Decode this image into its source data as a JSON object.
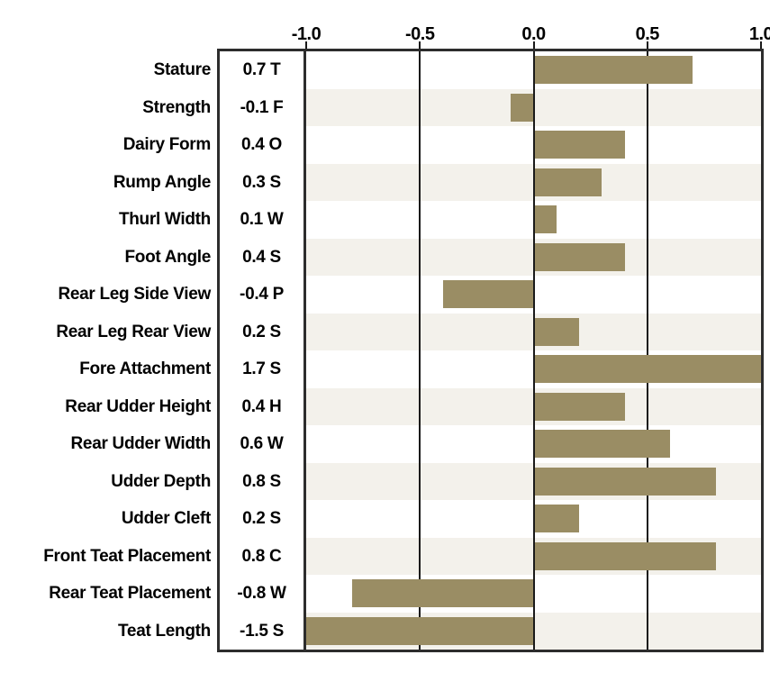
{
  "chart_data": {
    "type": "bar",
    "orientation": "horizontal",
    "title": "",
    "categories": [
      "Stature",
      "Strength",
      "Dairy Form",
      "Rump Angle",
      "Thurl Width",
      "Foot Angle",
      "Rear Leg Side View",
      "Rear Leg Rear View",
      "Fore Attachment",
      "Rear Udder Height",
      "Rear Udder Width",
      "Udder Depth",
      "Udder Cleft",
      "Front Teat Placement",
      "Rear Teat Placement",
      "Teat Length"
    ],
    "values": [
      0.7,
      -0.1,
      0.4,
      0.3,
      0.1,
      0.4,
      -0.4,
      0.2,
      1.7,
      0.4,
      0.6,
      0.8,
      0.2,
      0.8,
      -0.8,
      -1.5
    ],
    "codes": [
      "T",
      "F",
      "O",
      "S",
      "W",
      "S",
      "P",
      "S",
      "S",
      "H",
      "W",
      "S",
      "S",
      "C",
      "W",
      "S"
    ],
    "value_labels": [
      "0.7 T",
      "-0.1 F",
      "0.4 O",
      "0.3 S",
      "0.1 W",
      "0.4 S",
      "-0.4 P",
      "0.2 S",
      "1.7 S",
      "0.4 H",
      "0.6 W",
      "0.8 S",
      "0.2 S",
      "0.8 C",
      "-0.8 W",
      "-1.5 S"
    ],
    "xlim": [
      -1.0,
      1.0
    ],
    "x_ticks": [
      -1.0,
      -0.5,
      0.0,
      0.5,
      1.0
    ],
    "x_tick_labels": [
      "-1.0",
      "-0.5",
      "0.0",
      "0.5",
      "1.0"
    ],
    "gridlines_at": [
      -0.5,
      0.0,
      0.5
    ],
    "bars_clipped_to_xlim": true,
    "legend": "none",
    "colors": {
      "bar": "#9a8d64",
      "row_stripe": "#f3f1eb",
      "border": "#2d2d2d",
      "gridline": "#1a1a1a",
      "background": "#ffffff",
      "text": "#000000"
    }
  }
}
